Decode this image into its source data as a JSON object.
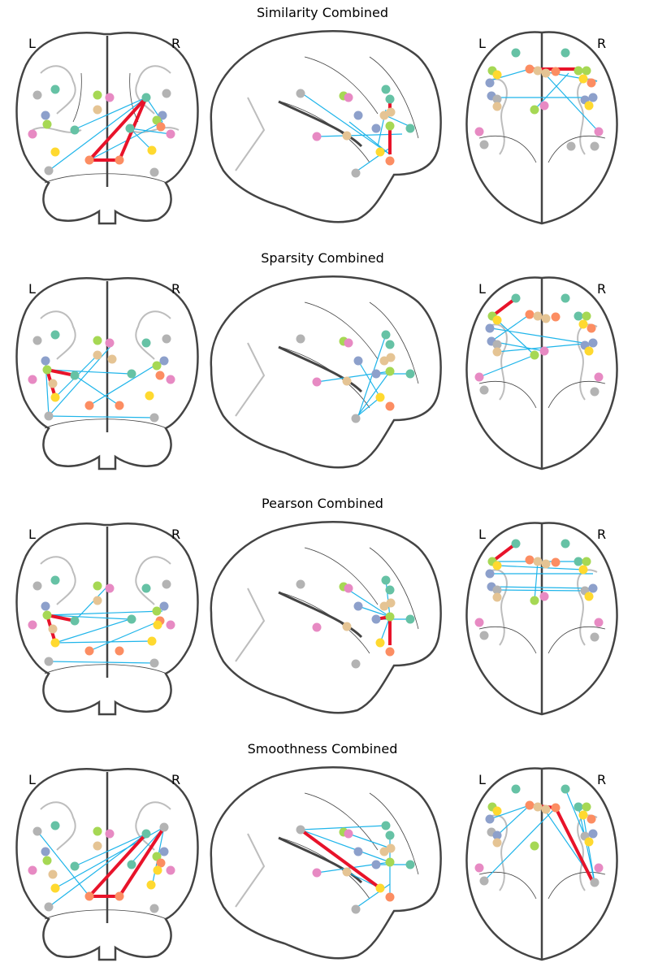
{
  "labels": {
    "left": "L",
    "right": "R"
  },
  "colors": {
    "outline": "#444444",
    "sulci": "#bdbdbd",
    "weak_edge": "#1fb5ea",
    "strong_edge": "#e8132a",
    "node_palette": [
      "#66c2a5",
      "#fc8d62",
      "#8da0cb",
      "#e78ac3",
      "#a6d854",
      "#ffd92f",
      "#e5c494",
      "#b3b3b3"
    ]
  },
  "panels": [
    {
      "title": "Similarity Combined"
    },
    {
      "title": "Sparsity Combined"
    },
    {
      "title": "Pearson Combined"
    },
    {
      "title": "Smoothness Combined"
    }
  ],
  "views": [
    "coronal",
    "sagittal",
    "axial"
  ]
}
